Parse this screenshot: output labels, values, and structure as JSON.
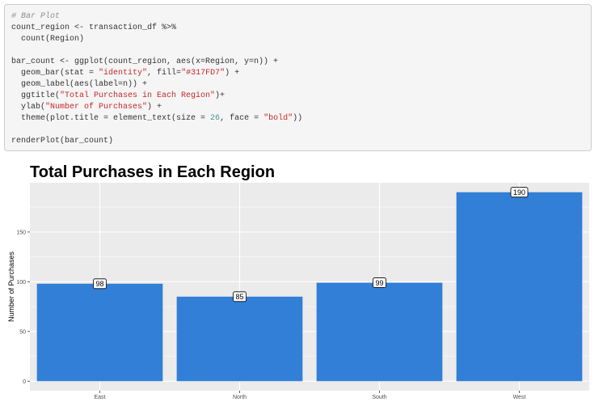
{
  "code": {
    "lines": [
      [
        {
          "t": "# Bar Plot",
          "k": "comment"
        }
      ],
      [
        {
          "t": "count_region <- transaction_df %>%",
          "k": "plain"
        }
      ],
      [
        {
          "t": "  count(Region)",
          "k": "plain"
        }
      ],
      [
        {
          "t": "",
          "k": "plain"
        }
      ],
      [
        {
          "t": "bar_count <- ggplot(count_region, aes(x=Region, y=n)) +",
          "k": "plain"
        }
      ],
      [
        {
          "t": "  geom_bar(stat = ",
          "k": "plain"
        },
        {
          "t": "\"identity\"",
          "k": "string"
        },
        {
          "t": ", fill=",
          "k": "plain"
        },
        {
          "t": "\"#317FD7\"",
          "k": "string"
        },
        {
          "t": ") +",
          "k": "plain"
        }
      ],
      [
        {
          "t": "  geom_label(aes(label=n)) +",
          "k": "plain"
        }
      ],
      [
        {
          "t": "  ggtitle(",
          "k": "plain"
        },
        {
          "t": "\"Total Purchases in Each Region\"",
          "k": "string"
        },
        {
          "t": ")+",
          "k": "plain"
        }
      ],
      [
        {
          "t": "  ylab(",
          "k": "plain"
        },
        {
          "t": "\"Number of Purchases\"",
          "k": "string"
        },
        {
          "t": ") +",
          "k": "plain"
        }
      ],
      [
        {
          "t": "  theme(plot.title = element_text(size = ",
          "k": "plain"
        },
        {
          "t": "26",
          "k": "number"
        },
        {
          "t": ", face = ",
          "k": "plain"
        },
        {
          "t": "\"bold\"",
          "k": "string"
        },
        {
          "t": "))",
          "k": "plain"
        }
      ],
      [
        {
          "t": "",
          "k": "plain"
        }
      ],
      [
        {
          "t": "renderPlot(bar_count)",
          "k": "plain"
        }
      ]
    ]
  },
  "chart_data": {
    "type": "bar",
    "title": "Total Purchases in Each Region",
    "xlabel": "",
    "ylabel": "Number of Purchases",
    "categories": [
      "East",
      "North",
      "South",
      "West"
    ],
    "values": [
      98,
      85,
      99,
      190
    ],
    "data_labels": [
      "98",
      "85",
      "99",
      "190"
    ],
    "yticks": [
      0,
      50,
      100,
      150
    ],
    "ylim": [
      -9.5,
      199.5
    ],
    "bar_color": "#317FD7",
    "panel_background": "#EBEBEB",
    "grid": true,
    "legend": "none"
  }
}
